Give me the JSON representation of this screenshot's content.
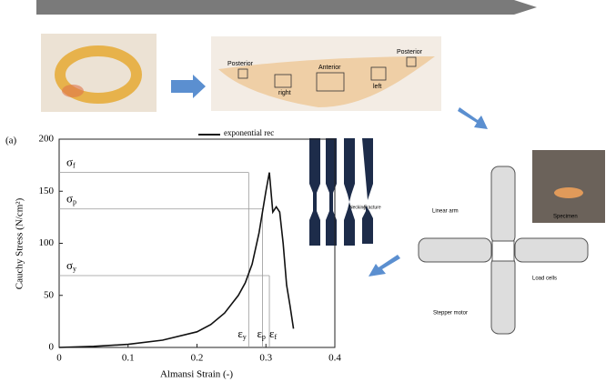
{
  "panel_label": "(a)",
  "legend_fragment": "exponential rec",
  "tissue_labels": [
    "Posterior",
    "Anterior",
    "Posterior",
    "right",
    "left"
  ],
  "specimen_labels": [
    "Necking",
    "Fracture"
  ],
  "device_labels": [
    "Linear arm",
    "Specimen",
    "Load cells",
    "Stepper motor"
  ],
  "chart_data": {
    "type": "line",
    "x_label": "Almansi Strain (-)",
    "y_label": "Cauchy Stress (N/cm²)",
    "x": [
      0,
      0.05,
      0.1,
      0.15,
      0.2,
      0.22,
      0.24,
      0.26,
      0.27,
      0.28,
      0.29,
      0.3,
      0.305,
      0.31,
      0.315,
      0.32,
      0.325,
      0.33,
      0.335,
      0.34
    ],
    "values": [
      0,
      1,
      3,
      7,
      15,
      22,
      33,
      50,
      62,
      80,
      110,
      150,
      168,
      130,
      135,
      130,
      100,
      60,
      40,
      18
    ],
    "color": "#111111",
    "xlim": [
      0,
      0.4
    ],
    "xticks": [
      0,
      0.1,
      0.2,
      0.3,
      0.4
    ],
    "ylim": [
      0,
      200
    ],
    "yticks": [
      0,
      50,
      100,
      150,
      200
    ],
    "stress_marks": [
      {
        "symbol": "σ",
        "sub": "f",
        "value": 168
      },
      {
        "symbol": "σ",
        "sub": "p",
        "value": 133
      },
      {
        "symbol": "σ",
        "sub": "y",
        "value": 69
      }
    ],
    "strain_marks": [
      {
        "symbol": "ε",
        "sub": "y",
        "value": 0.275
      },
      {
        "symbol": "ε",
        "sub": "p",
        "value": 0.295
      },
      {
        "symbol": "ε",
        "sub": "f",
        "value": 0.305
      }
    ]
  }
}
